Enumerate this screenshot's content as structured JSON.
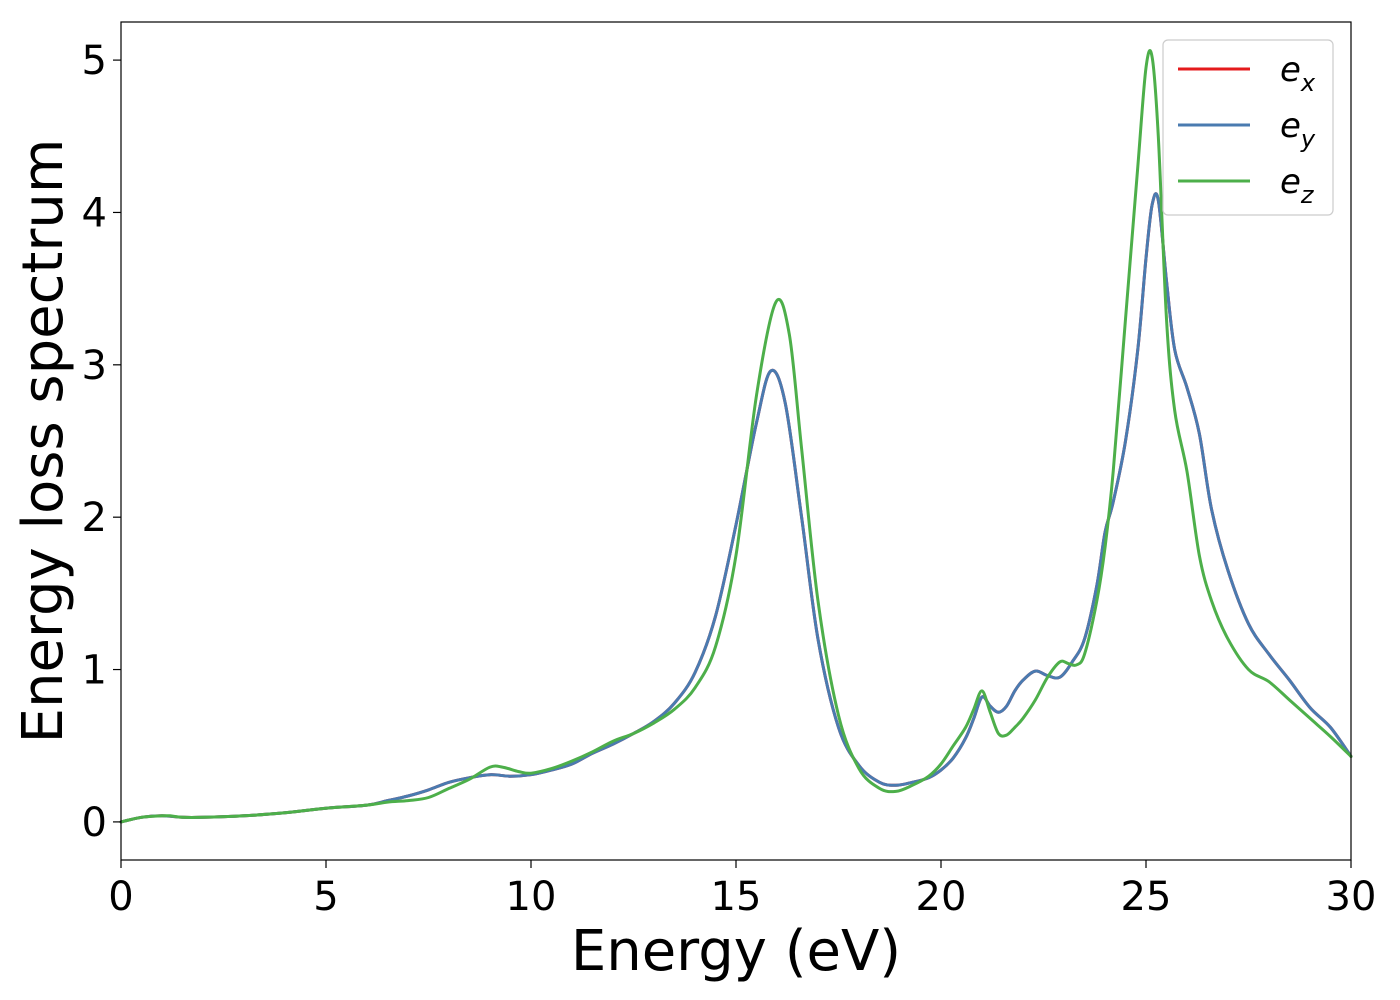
{
  "chart_data": {
    "type": "line",
    "title": "",
    "xlabel": "Energy (eV)",
    "ylabel": "Energy loss spectrum",
    "xlim": [
      0,
      30
    ],
    "ylim": [
      -0.25,
      5.25
    ],
    "xticks": [
      0,
      5,
      10,
      15,
      20,
      25,
      30
    ],
    "yticks": [
      0,
      1,
      2,
      3,
      4,
      5
    ],
    "grid": false,
    "legend_position": "top-right",
    "series": [
      {
        "name": "e_x",
        "label_base": "e",
        "label_sub": "x",
        "color": "#e41a1c",
        "x": [
          0,
          0.5,
          1,
          1.5,
          2,
          3,
          4,
          5,
          6,
          6.5,
          7,
          7.5,
          8,
          8.5,
          9,
          9.5,
          10,
          10.5,
          11,
          11.5,
          12,
          12.5,
          13,
          13.5,
          14,
          14.5,
          15,
          15.5,
          15.85,
          16.2,
          16.6,
          17,
          17.5,
          18,
          18.5,
          18.9,
          19.3,
          19.7,
          20,
          20.3,
          20.6,
          20.8,
          21,
          21.2,
          21.4,
          21.6,
          21.8,
          22,
          22.3,
          22.6,
          22.9,
          23.2,
          23.5,
          23.8,
          24,
          24.2,
          24.5,
          24.8,
          25,
          25.15,
          25.3,
          25.5,
          25.7,
          26,
          26.3,
          26.6,
          27,
          27.5,
          28,
          28.5,
          29,
          29.5,
          30
        ],
        "values": [
          0.0,
          0.03,
          0.04,
          0.03,
          0.03,
          0.04,
          0.06,
          0.09,
          0.11,
          0.14,
          0.17,
          0.21,
          0.26,
          0.29,
          0.31,
          0.3,
          0.31,
          0.34,
          0.38,
          0.45,
          0.51,
          0.58,
          0.66,
          0.78,
          0.98,
          1.35,
          1.95,
          2.62,
          2.96,
          2.75,
          2.0,
          1.2,
          0.62,
          0.37,
          0.26,
          0.24,
          0.26,
          0.29,
          0.34,
          0.42,
          0.55,
          0.68,
          0.82,
          0.76,
          0.72,
          0.76,
          0.86,
          0.93,
          0.99,
          0.96,
          0.95,
          1.05,
          1.2,
          1.55,
          1.9,
          2.1,
          2.5,
          3.1,
          3.7,
          4.05,
          4.08,
          3.55,
          3.1,
          2.85,
          2.55,
          2.05,
          1.65,
          1.3,
          1.1,
          0.93,
          0.75,
          0.62,
          0.43
        ]
      },
      {
        "name": "e_y",
        "label_base": "e",
        "label_sub": "y",
        "color": "#4a7bb0",
        "x": [
          0,
          0.5,
          1,
          1.5,
          2,
          3,
          4,
          5,
          6,
          6.5,
          7,
          7.5,
          8,
          8.5,
          9,
          9.5,
          10,
          10.5,
          11,
          11.5,
          12,
          12.5,
          13,
          13.5,
          14,
          14.5,
          15,
          15.5,
          15.85,
          16.2,
          16.6,
          17,
          17.5,
          18,
          18.5,
          18.9,
          19.3,
          19.7,
          20,
          20.3,
          20.6,
          20.8,
          21,
          21.2,
          21.4,
          21.6,
          21.8,
          22,
          22.3,
          22.6,
          22.9,
          23.2,
          23.5,
          23.8,
          24,
          24.2,
          24.5,
          24.8,
          25,
          25.15,
          25.3,
          25.5,
          25.7,
          26,
          26.3,
          26.6,
          27,
          27.5,
          28,
          28.5,
          29,
          29.5,
          30
        ],
        "values": [
          0.0,
          0.03,
          0.04,
          0.03,
          0.03,
          0.04,
          0.06,
          0.09,
          0.11,
          0.14,
          0.17,
          0.21,
          0.26,
          0.29,
          0.31,
          0.3,
          0.31,
          0.34,
          0.38,
          0.45,
          0.51,
          0.58,
          0.66,
          0.78,
          0.98,
          1.35,
          1.95,
          2.62,
          2.96,
          2.75,
          2.0,
          1.2,
          0.62,
          0.37,
          0.26,
          0.24,
          0.26,
          0.29,
          0.34,
          0.42,
          0.55,
          0.68,
          0.82,
          0.76,
          0.72,
          0.76,
          0.86,
          0.93,
          0.99,
          0.96,
          0.95,
          1.05,
          1.2,
          1.55,
          1.9,
          2.1,
          2.5,
          3.1,
          3.7,
          4.05,
          4.08,
          3.55,
          3.1,
          2.85,
          2.55,
          2.05,
          1.65,
          1.3,
          1.1,
          0.93,
          0.75,
          0.62,
          0.43
        ]
      },
      {
        "name": "e_z",
        "label_base": "e",
        "label_sub": "z",
        "color": "#4daf4a",
        "x": [
          0,
          0.5,
          1,
          1.2,
          1.5,
          2,
          3,
          4,
          5,
          6,
          6.5,
          7,
          7.5,
          8,
          8.5,
          9,
          9.3,
          9.7,
          10,
          10.5,
          11,
          11.5,
          12,
          12.5,
          13,
          13.5,
          14,
          14.5,
          15,
          15.5,
          15.97,
          16.3,
          16.6,
          17,
          17.5,
          18,
          18.5,
          18.9,
          19.3,
          19.7,
          20,
          20.3,
          20.6,
          20.8,
          21,
          21.2,
          21.4,
          21.6,
          21.8,
          22,
          22.3,
          22.6,
          22.9,
          23.1,
          23.3,
          23.5,
          23.8,
          24,
          24.2,
          24.5,
          24.8,
          25,
          25.15,
          25.3,
          25.5,
          25.7,
          26,
          26.3,
          26.6,
          27,
          27.5,
          28,
          28.5,
          29,
          29.5,
          30
        ],
        "values": [
          0.0,
          0.03,
          0.04,
          0.04,
          0.03,
          0.03,
          0.04,
          0.06,
          0.09,
          0.11,
          0.13,
          0.14,
          0.16,
          0.22,
          0.28,
          0.36,
          0.36,
          0.33,
          0.32,
          0.35,
          0.4,
          0.46,
          0.53,
          0.58,
          0.65,
          0.74,
          0.88,
          1.15,
          1.75,
          2.8,
          3.41,
          3.2,
          2.45,
          1.45,
          0.7,
          0.35,
          0.22,
          0.2,
          0.24,
          0.3,
          0.38,
          0.5,
          0.62,
          0.74,
          0.86,
          0.72,
          0.58,
          0.57,
          0.62,
          0.68,
          0.8,
          0.95,
          1.05,
          1.04,
          1.03,
          1.1,
          1.45,
          1.8,
          2.3,
          3.3,
          4.3,
          4.95,
          5.02,
          4.5,
          3.3,
          2.7,
          2.3,
          1.75,
          1.45,
          1.2,
          1.0,
          0.92,
          0.8,
          0.68,
          0.56,
          0.43
        ]
      }
    ]
  }
}
